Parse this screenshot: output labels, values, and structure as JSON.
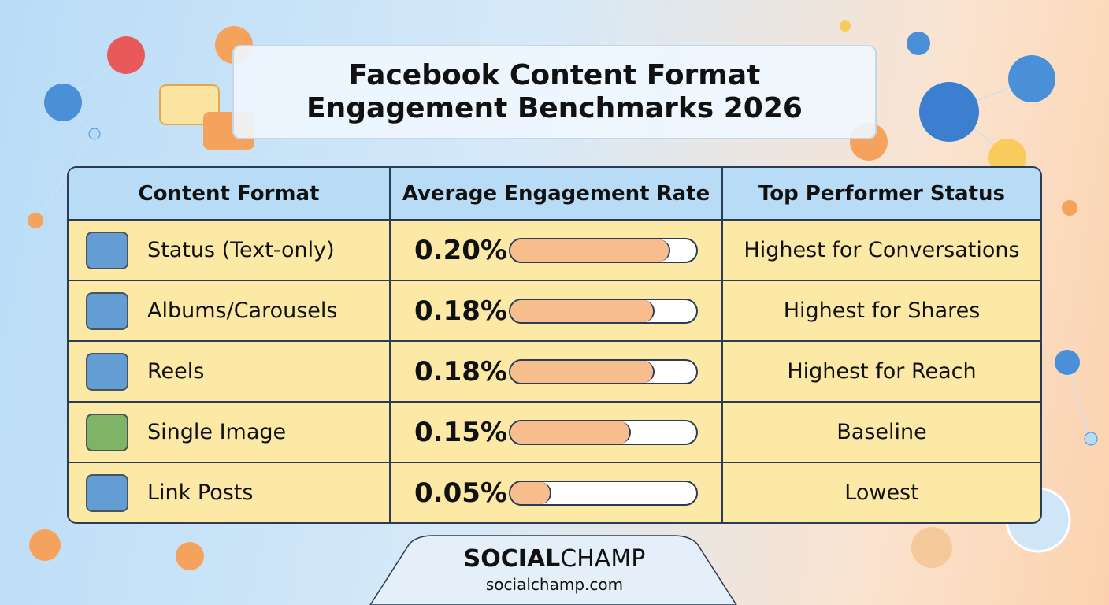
{
  "title": "Facebook Content Format Engagement Benchmarks 2026",
  "table": {
    "headers": [
      "Content Format",
      "Average Engagement Rate",
      "Top Performer Status"
    ],
    "rows": [
      {
        "format": "Status (Text-only)",
        "rate": {
          "value": 0.2,
          "label": "0.20%"
        },
        "status": "Highest for Conversations"
      },
      {
        "format": "Albums/Carousels",
        "rate": {
          "value": 0.18,
          "label": "0.18%"
        },
        "status": "Highest for Shares"
      },
      {
        "format": "Reels",
        "rate": {
          "value": 0.18,
          "label": "0.18%"
        },
        "status": "Highest for Reach"
      },
      {
        "format": "Single Image",
        "rate": {
          "value": 0.15,
          "label": "0.15%"
        },
        "status": "Baseline"
      },
      {
        "format": "Link Posts",
        "rate": {
          "value": 0.05,
          "label": "0.05%"
        },
        "status": "Lowest"
      }
    ]
  },
  "logo": {
    "bold": "SOCIAL",
    "light": "CHAMP"
  },
  "url": "socialchamp.com"
}
